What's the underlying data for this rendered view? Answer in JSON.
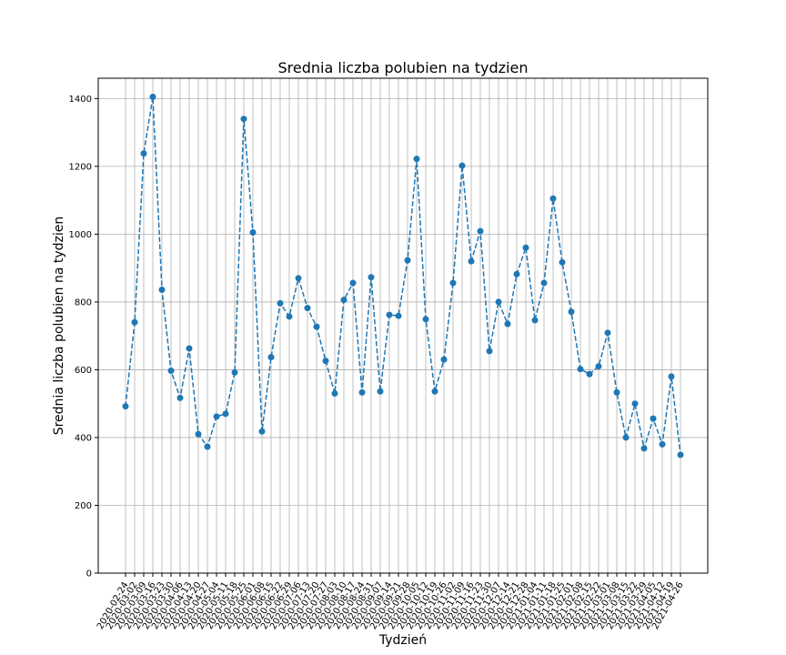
{
  "chart_data": {
    "type": "line",
    "title": "Srednia liczba polubien na tydzien",
    "xlabel": "Tydzień",
    "ylabel": "Srednia liczba polubien na tydzien",
    "ylim": [
      0,
      1460
    ],
    "yticks": [
      0,
      200,
      400,
      600,
      800,
      1000,
      1200,
      1400
    ],
    "grid": true,
    "line_style": "dashed",
    "marker": "circle",
    "color": "#1f77b4",
    "categories": [
      "2020-02-24",
      "2020-03-02",
      "2020-03-09",
      "2020-03-16",
      "2020-03-23",
      "2020-03-30",
      "2020-04-06",
      "2020-04-13",
      "2020-04-20",
      "2020-04-27",
      "2020-05-04",
      "2020-05-11",
      "2020-05-18",
      "2020-05-25",
      "2020-06-01",
      "2020-06-08",
      "2020-06-15",
      "2020-06-22",
      "2020-06-29",
      "2020-07-06",
      "2020-07-13",
      "2020-07-20",
      "2020-07-27",
      "2020-08-03",
      "2020-08-10",
      "2020-08-17",
      "2020-08-24",
      "2020-08-31",
      "2020-09-07",
      "2020-09-14",
      "2020-09-21",
      "2020-09-28",
      "2020-10-05",
      "2020-10-12",
      "2020-10-19",
      "2020-10-26",
      "2020-11-02",
      "2020-11-09",
      "2020-11-16",
      "2020-11-23",
      "2020-11-30",
      "2020-12-07",
      "2020-12-14",
      "2020-12-21",
      "2020-12-28",
      "2021-01-04",
      "2021-01-11",
      "2021-01-18",
      "2021-01-25",
      "2021-02-01",
      "2021-02-08",
      "2021-02-15",
      "2021-02-22",
      "2021-03-01",
      "2021-03-08",
      "2021-03-15",
      "2021-03-22",
      "2021-03-29",
      "2021-04-05",
      "2021-04-12",
      "2021-04-19",
      "2021-04-26"
    ],
    "values": [
      492,
      740,
      1238,
      1405,
      836,
      597,
      517,
      663,
      410,
      373,
      462,
      470,
      592,
      1340,
      1005,
      418,
      637,
      796,
      757,
      870,
      782,
      727,
      626,
      530,
      806,
      856,
      533,
      873,
      536,
      762,
      759,
      923,
      1222,
      749,
      536,
      630,
      856,
      1202,
      920,
      1009,
      655,
      800,
      735,
      882,
      960,
      746,
      856,
      1105,
      917,
      771,
      602,
      587,
      610,
      709,
      533,
      400,
      500,
      368,
      456,
      380,
      580,
      349
    ]
  }
}
